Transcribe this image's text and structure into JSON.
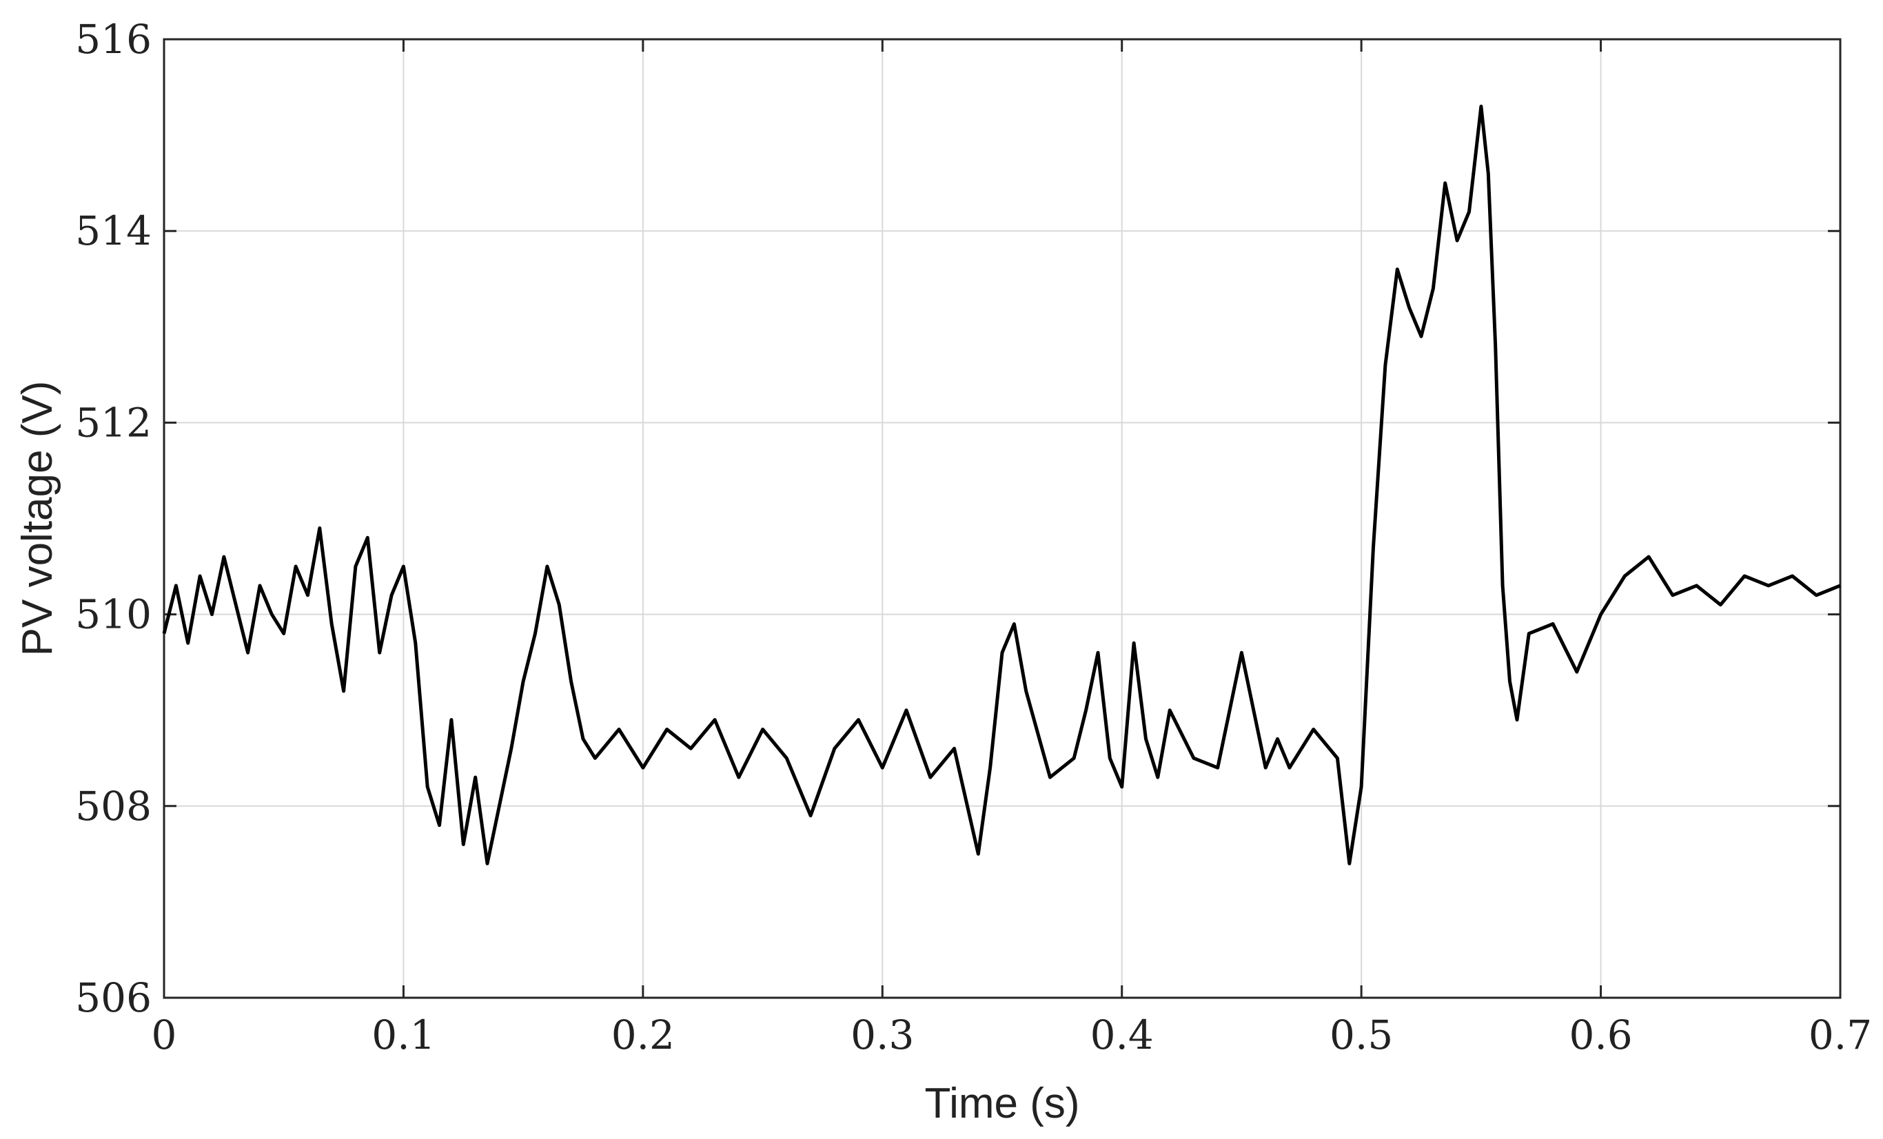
{
  "chart_data": {
    "type": "line",
    "xlabel": "Time (s)",
    "ylabel": "PV voltage (V)",
    "xlim": [
      0,
      0.7
    ],
    "ylim": [
      506,
      516
    ],
    "grid": true,
    "xticks": [
      0,
      0.1,
      0.2,
      0.3,
      0.4,
      0.5,
      0.6,
      0.7
    ],
    "xtick_labels": [
      "0",
      "0.1",
      "0.2",
      "0.3",
      "0.4",
      "0.5",
      "0.6",
      "0.7"
    ],
    "yticks": [
      506,
      508,
      510,
      512,
      514,
      516
    ],
    "ytick_labels": [
      "506",
      "508",
      "510",
      "512",
      "514",
      "516"
    ],
    "colors": {
      "series": "#000000",
      "grid": "#d9d9d9",
      "frame": "#262626"
    },
    "series": [
      {
        "x": [
          0,
          0.005,
          0.01,
          0.015,
          0.02,
          0.025,
          0.03,
          0.035,
          0.04,
          0.045,
          0.05,
          0.055,
          0.06,
          0.065,
          0.07,
          0.075,
          0.08,
          0.085,
          0.09,
          0.095,
          0.1,
          0.105,
          0.11,
          0.115,
          0.12,
          0.125,
          0.13,
          0.135,
          0.14,
          0.145,
          0.15,
          0.155,
          0.16,
          0.165,
          0.17,
          0.175,
          0.18,
          0.19,
          0.2,
          0.21,
          0.22,
          0.23,
          0.24,
          0.25,
          0.26,
          0.27,
          0.28,
          0.29,
          0.3,
          0.31,
          0.32,
          0.33,
          0.34,
          0.345,
          0.35,
          0.355,
          0.36,
          0.37,
          0.38,
          0.385,
          0.39,
          0.395,
          0.4,
          0.405,
          0.41,
          0.415,
          0.42,
          0.43,
          0.44,
          0.445,
          0.45,
          0.455,
          0.46,
          0.465,
          0.47,
          0.48,
          0.49,
          0.495,
          0.5,
          0.505,
          0.51,
          0.515,
          0.52,
          0.525,
          0.53,
          0.535,
          0.54,
          0.545,
          0.55,
          0.553,
          0.556,
          0.559,
          0.562,
          0.565,
          0.57,
          0.58,
          0.59,
          0.6,
          0.61,
          0.62,
          0.63,
          0.64,
          0.65,
          0.66,
          0.67,
          0.68,
          0.69,
          0.7
        ],
        "y": [
          509.8,
          510.3,
          509.7,
          510.4,
          510.0,
          510.6,
          510.1,
          509.6,
          510.3,
          510.0,
          509.8,
          510.5,
          510.2,
          510.9,
          509.9,
          509.2,
          510.5,
          510.8,
          509.6,
          510.2,
          510.5,
          509.7,
          508.2,
          507.8,
          508.9,
          507.6,
          508.3,
          507.4,
          508.0,
          508.6,
          509.3,
          509.8,
          510.5,
          510.1,
          509.3,
          508.7,
          508.5,
          508.8,
          508.4,
          508.8,
          508.6,
          508.9,
          508.3,
          508.8,
          508.5,
          507.9,
          508.6,
          508.9,
          508.4,
          509.0,
          508.3,
          508.6,
          507.5,
          508.4,
          509.6,
          509.9,
          509.2,
          508.3,
          508.5,
          509.0,
          509.6,
          508.5,
          508.2,
          509.7,
          508.7,
          508.3,
          509.0,
          508.5,
          508.4,
          509.0,
          509.6,
          509.0,
          508.4,
          508.7,
          508.4,
          508.8,
          508.5,
          507.4,
          508.2,
          510.7,
          512.6,
          513.6,
          513.2,
          512.9,
          513.4,
          514.5,
          513.9,
          514.2,
          515.3,
          514.6,
          512.8,
          510.3,
          509.3,
          508.9,
          509.8,
          509.9,
          509.4,
          510.0,
          510.4,
          510.6,
          510.2,
          510.3,
          510.1,
          510.4,
          510.3,
          510.4,
          510.2,
          510.3
        ]
      }
    ]
  }
}
